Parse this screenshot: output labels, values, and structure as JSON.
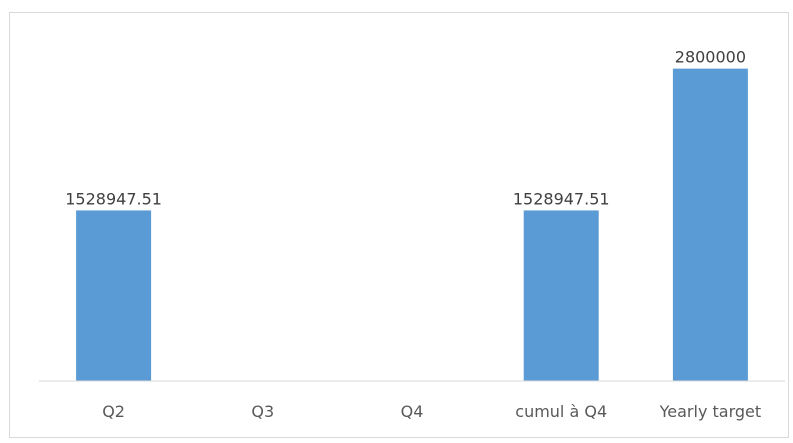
{
  "chart_data": {
    "type": "bar",
    "categories": [
      "Q2",
      "Q3",
      "Q4",
      "cumul à Q4",
      "Yearly target"
    ],
    "values": [
      1528947.51,
      null,
      null,
      1528947.51,
      2800000
    ],
    "data_labels": [
      "1528947.51",
      "",
      "",
      "1528947.51",
      "2800000"
    ],
    "title": "",
    "xlabel": "",
    "ylabel": "",
    "ylim": [
      0,
      3200000
    ],
    "grid": false,
    "legend": "none",
    "bar_color": "#5b9bd5",
    "axis_color": "#d9d9d9"
  }
}
